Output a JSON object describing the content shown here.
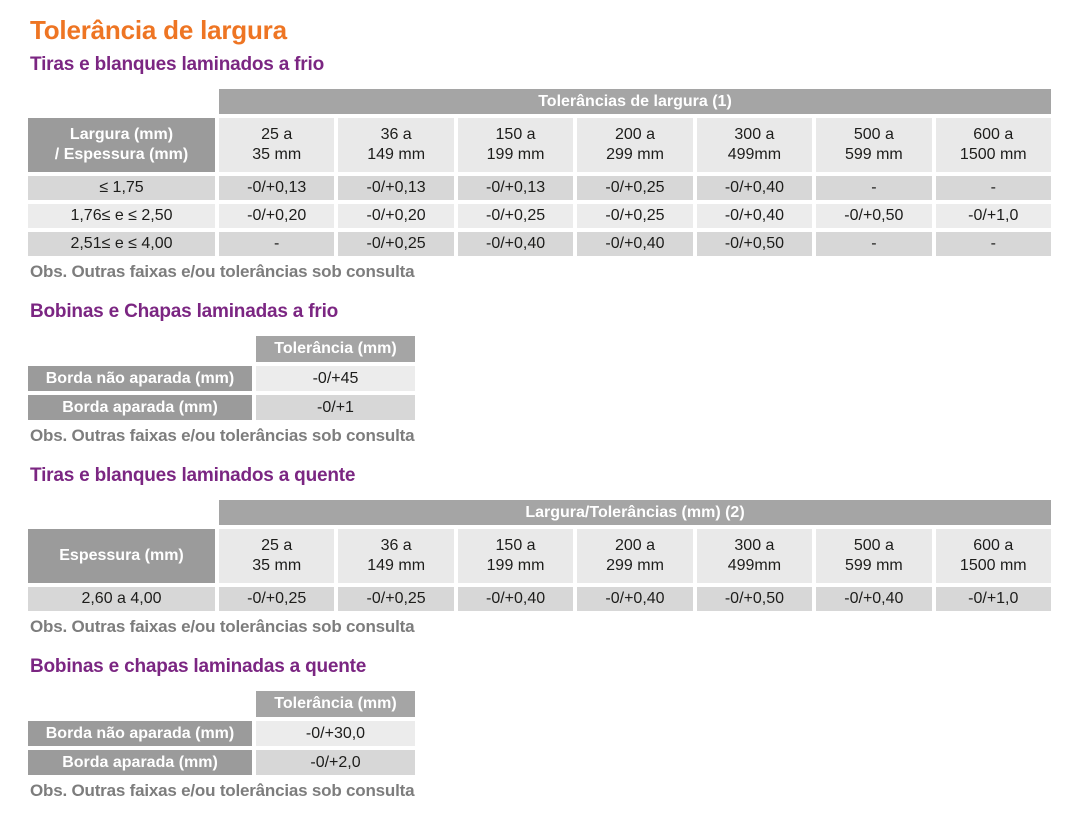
{
  "page": {
    "title": "Tolerância de largura"
  },
  "colors": {
    "accent_orange": "#ee7523",
    "accent_purple": "#7b2682",
    "band_gray": "#a5a5a5",
    "label_gray": "#9b9b9b",
    "row_light": "#ececec",
    "row_dark": "#d7d7d7",
    "note_gray": "#7d7d7d"
  },
  "sections": [
    {
      "heading": "Tiras e blanques laminados a frio",
      "note": "Obs. Outras faixas e/ou tolerâncias sob consulta",
      "table": {
        "band": "Tolerâncias de largura (1)",
        "corner": "Largura (mm)\n/ Espessura (mm)",
        "columns": [
          "25 a\n35 mm",
          "36 a\n149 mm",
          "150 a\n199 mm",
          "200 a\n299 mm",
          "300 a\n499mm",
          "500 a\n599 mm",
          "600 a\n1500 mm"
        ],
        "rows": [
          {
            "label": "≤ 1,75",
            "values": [
              "-0/+0,13",
              "-0/+0,13",
              "-0/+0,13",
              "-0/+0,25",
              "-0/+0,40",
              "-",
              "-"
            ]
          },
          {
            "label": "1,76≤ e ≤ 2,50",
            "values": [
              "-0/+0,20",
              "-0/+0,20",
              "-0/+0,25",
              "-0/+0,25",
              "-0/+0,40",
              "-0/+0,50",
              "-0/+1,0"
            ]
          },
          {
            "label": "2,51≤ e ≤ 4,00",
            "values": [
              "-",
              "-0/+0,25",
              "-0/+0,40",
              "-0/+0,40",
              "-0/+0,50",
              "-",
              "-"
            ]
          }
        ]
      }
    },
    {
      "heading": "Bobinas e Chapas laminadas a frio",
      "note": "Obs. Outras faixas e/ou tolerâncias sob consulta",
      "table": {
        "band": "Tolerância (mm)",
        "rows": [
          {
            "label": "Borda não aparada (mm)",
            "value": "-0/+45"
          },
          {
            "label": "Borda aparada (mm)",
            "value": "-0/+1"
          }
        ]
      }
    },
    {
      "heading": "Tiras e blanques laminados a quente",
      "note": "Obs. Outras faixas e/ou tolerâncias sob consulta",
      "table": {
        "band": "Largura/Tolerâncias (mm) (2)",
        "corner": "Espessura (mm)",
        "columns": [
          "25 a\n35 mm",
          "36 a\n149 mm",
          "150 a\n199 mm",
          "200 a\n299 mm",
          "300 a\n499mm",
          "500 a\n599 mm",
          "600 a\n1500 mm"
        ],
        "rows": [
          {
            "label": "2,60 a 4,00",
            "values": [
              "-0/+0,25",
              "-0/+0,25",
              "-0/+0,40",
              "-0/+0,40",
              "-0/+0,50",
              "-0/+0,40",
              "-0/+1,0"
            ]
          }
        ]
      }
    },
    {
      "heading": "Bobinas e chapas laminadas a quente",
      "note": "Obs. Outras faixas e/ou tolerâncias sob consulta",
      "table": {
        "band": "Tolerância (mm)",
        "rows": [
          {
            "label": "Borda não aparada (mm)",
            "value": "-0/+30,0"
          },
          {
            "label": "Borda aparada (mm)",
            "value": "-0/+2,0"
          }
        ]
      }
    }
  ]
}
